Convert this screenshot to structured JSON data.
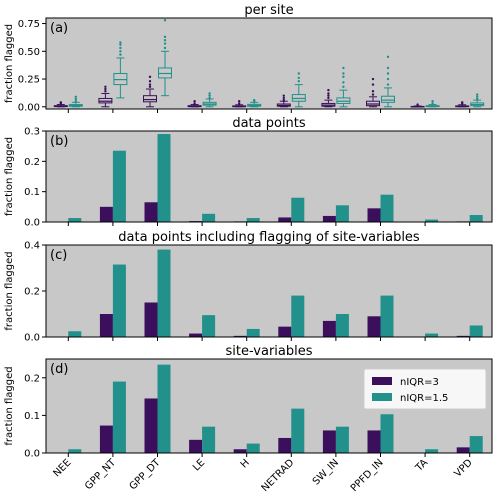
{
  "colors": {
    "background": "#c8c8c8",
    "nIQR3": "#3b0f5c",
    "nIQR15": "#22908b"
  },
  "chart_data": [
    {
      "type": "box",
      "letter": "(a)",
      "title": "per site",
      "ylabel": "fraction flagged",
      "ylim": [
        -0.02,
        0.8
      ],
      "yticks": [
        "0.00",
        "0.25",
        "0.50",
        "0.75"
      ],
      "ytick_values": [
        0,
        0.25,
        0.5,
        0.75
      ],
      "categories": [
        "NEE",
        "GPP_NT",
        "GPP_DT",
        "LE",
        "H",
        "NETRAD",
        "SW_IN",
        "PPFD_IN",
        "TA",
        "VPD"
      ],
      "series": [
        {
          "name": "nIQR=3",
          "boxes": [
            {
              "min": 0.0,
              "q1": 0.002,
              "med": 0.005,
              "q3": 0.01,
              "max": 0.02,
              "outliers": [
                0.03,
                0.04
              ]
            },
            {
              "min": 0.0,
              "q1": 0.035,
              "med": 0.05,
              "q3": 0.075,
              "max": 0.12,
              "outliers": [
                0.14,
                0.16,
                0.18
              ]
            },
            {
              "min": 0.0,
              "q1": 0.045,
              "med": 0.065,
              "q3": 0.1,
              "max": 0.16,
              "outliers": [
                0.18,
                0.2,
                0.23,
                0.27
              ]
            },
            {
              "min": 0.0,
              "q1": 0.001,
              "med": 0.004,
              "q3": 0.01,
              "max": 0.02,
              "outliers": [
                0.03,
                0.05
              ]
            },
            {
              "min": 0.0,
              "q1": 0.001,
              "med": 0.003,
              "q3": 0.008,
              "max": 0.018,
              "outliers": [
                0.03,
                0.05
              ]
            },
            {
              "min": 0.0,
              "q1": 0.005,
              "med": 0.012,
              "q3": 0.025,
              "max": 0.05,
              "outliers": [
                0.06,
                0.08,
                0.1
              ]
            },
            {
              "min": 0.0,
              "q1": 0.005,
              "med": 0.015,
              "q3": 0.03,
              "max": 0.06,
              "outliers": [
                0.08,
                0.1,
                0.12,
                0.15
              ]
            },
            {
              "min": 0.0,
              "q1": 0.01,
              "med": 0.025,
              "q3": 0.05,
              "max": 0.09,
              "outliers": [
                0.11,
                0.14,
                0.2,
                0.25
              ]
            },
            {
              "min": 0.0,
              "q1": 0.0,
              "med": 0.001,
              "q3": 0.003,
              "max": 0.007,
              "outliers": [
                0.01,
                0.02
              ]
            },
            {
              "min": 0.0,
              "q1": 0.001,
              "med": 0.003,
              "q3": 0.008,
              "max": 0.018,
              "outliers": [
                0.03,
                0.04
              ]
            }
          ]
        },
        {
          "name": "nIQR=1.5",
          "boxes": [
            {
              "min": 0.0,
              "q1": 0.005,
              "med": 0.012,
              "q3": 0.02,
              "max": 0.04,
              "outliers": [
                0.05,
                0.07,
                0.09
              ]
            },
            {
              "min": 0.08,
              "q1": 0.2,
              "med": 0.245,
              "q3": 0.3,
              "max": 0.44,
              "outliers": [
                0.47,
                0.5,
                0.53,
                0.56,
                0.58
              ]
            },
            {
              "min": 0.1,
              "q1": 0.26,
              "med": 0.3,
              "q3": 0.35,
              "max": 0.5,
              "outliers": [
                0.53,
                0.57,
                0.6,
                0.63,
                0.78
              ]
            },
            {
              "min": 0.0,
              "q1": 0.015,
              "med": 0.025,
              "q3": 0.04,
              "max": 0.07,
              "outliers": [
                0.08,
                0.1,
                0.12
              ]
            },
            {
              "min": 0.0,
              "q1": 0.005,
              "med": 0.012,
              "q3": 0.022,
              "max": 0.04,
              "outliers": [
                0.05,
                0.06
              ]
            },
            {
              "min": 0.0,
              "q1": 0.05,
              "med": 0.075,
              "q3": 0.11,
              "max": 0.2,
              "outliers": [
                0.23,
                0.26,
                0.3
              ]
            },
            {
              "min": 0.0,
              "q1": 0.03,
              "med": 0.05,
              "q3": 0.08,
              "max": 0.15,
              "outliers": [
                0.18,
                0.22,
                0.27,
                0.3,
                0.35
              ]
            },
            {
              "min": 0.0,
              "q1": 0.04,
              "med": 0.06,
              "q3": 0.095,
              "max": 0.17,
              "outliers": [
                0.2,
                0.25,
                0.3,
                0.35,
                0.45
              ]
            },
            {
              "min": 0.0,
              "q1": 0.002,
              "med": 0.005,
              "q3": 0.01,
              "max": 0.02,
              "outliers": [
                0.03,
                0.05
              ]
            },
            {
              "min": 0.0,
              "q1": 0.01,
              "med": 0.02,
              "q3": 0.035,
              "max": 0.06,
              "outliers": [
                0.07,
                0.09,
                0.11
              ]
            }
          ]
        }
      ]
    },
    {
      "type": "bar",
      "letter": "(b)",
      "title": "data points",
      "ylabel": "fraction flagged",
      "ylim": [
        0,
        0.3
      ],
      "yticks": [
        "0.0",
        "0.1",
        "0.2",
        "0.3"
      ],
      "ytick_values": [
        0,
        0.1,
        0.2,
        0.3
      ],
      "categories": [
        "NEE",
        "GPP_NT",
        "GPP_DT",
        "LE",
        "H",
        "NETRAD",
        "SW_IN",
        "PPFD_IN",
        "TA",
        "VPD"
      ],
      "series": [
        {
          "name": "nIQR=3",
          "values": [
            0.001,
            0.05,
            0.065,
            0.003,
            0.002,
            0.015,
            0.02,
            0.045,
            0.001,
            0.002
          ]
        },
        {
          "name": "nIQR=1.5",
          "values": [
            0.013,
            0.235,
            0.29,
            0.027,
            0.013,
            0.08,
            0.055,
            0.09,
            0.008,
            0.023
          ]
        }
      ]
    },
    {
      "type": "bar",
      "letter": "(c)",
      "title": "data points including flagging of site-variables",
      "ylabel": "fraction flagged",
      "ylim": [
        0,
        0.4
      ],
      "yticks": [
        "0.0",
        "0.2",
        "0.4"
      ],
      "ytick_values": [
        0,
        0.2,
        0.4
      ],
      "categories": [
        "NEE",
        "GPP_NT",
        "GPP_DT",
        "LE",
        "H",
        "NETRAD",
        "SW_IN",
        "PPFD_IN",
        "TA",
        "VPD"
      ],
      "series": [
        {
          "name": "nIQR=3",
          "values": [
            0.002,
            0.1,
            0.15,
            0.015,
            0.005,
            0.045,
            0.07,
            0.09,
            0.001,
            0.005
          ]
        },
        {
          "name": "nIQR=1.5",
          "values": [
            0.025,
            0.315,
            0.38,
            0.095,
            0.035,
            0.18,
            0.1,
            0.18,
            0.015,
            0.05
          ]
        }
      ]
    },
    {
      "type": "bar",
      "letter": "(d)",
      "title": "site-variables",
      "ylabel": "fraction flagged",
      "ylim": [
        0,
        0.25
      ],
      "yticks": [
        "0.0",
        "0.1",
        "0.2"
      ],
      "ytick_values": [
        0,
        0.1,
        0.2
      ],
      "categories": [
        "NEE",
        "GPP_NT",
        "GPP_DT",
        "LE",
        "H",
        "NETRAD",
        "SW_IN",
        "PPFD_IN",
        "TA",
        "VPD"
      ],
      "legend": {
        "placement": "top-right",
        "entries": [
          "nIQR=3",
          "nIQR=1.5"
        ]
      },
      "series": [
        {
          "name": "nIQR=3",
          "values": [
            0.0,
            0.073,
            0.145,
            0.035,
            0.01,
            0.04,
            0.06,
            0.06,
            0.0,
            0.015
          ]
        },
        {
          "name": "nIQR=1.5",
          "values": [
            0.01,
            0.19,
            0.235,
            0.07,
            0.025,
            0.118,
            0.07,
            0.103,
            0.01,
            0.045
          ]
        }
      ]
    }
  ]
}
